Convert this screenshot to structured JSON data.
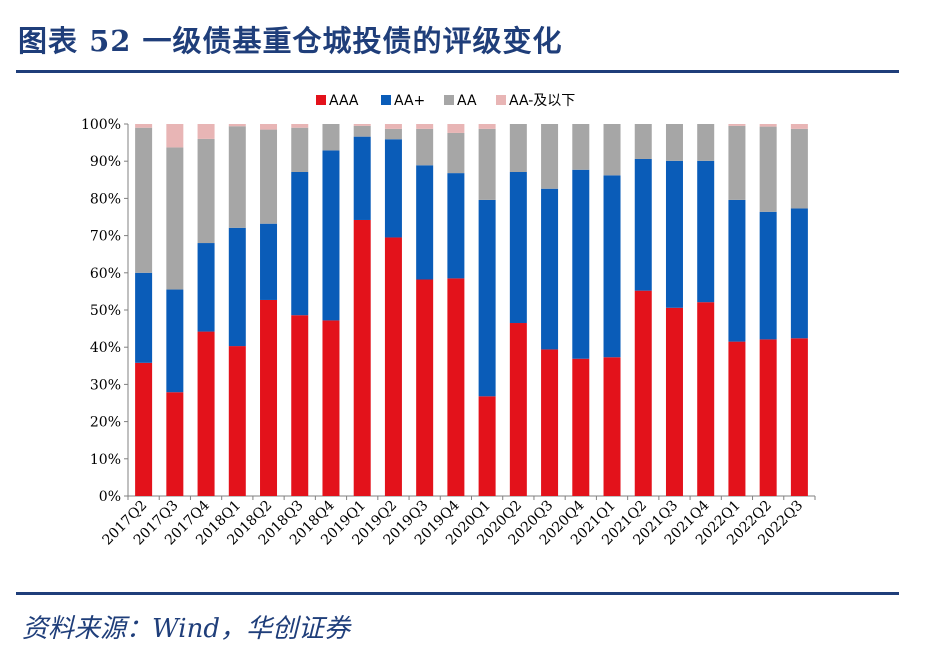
{
  "title": "图表 52  一级债基重仓城投债的评级变化",
  "source": "资料来源：Wind，华创证券",
  "colors": {
    "AAA": "#e3121b",
    "AA+": "#0a5cb8",
    "AA": "#a6a6a6",
    "AA-及以下": "#e8b5b5",
    "axis": "#808080",
    "text": "#000000"
  },
  "chart_data": {
    "type": "bar",
    "stacked": true,
    "title": "",
    "xlabel": "",
    "ylabel": "",
    "ylim": [
      0,
      100
    ],
    "y_ticks": [
      "0%",
      "10%",
      "20%",
      "30%",
      "40%",
      "50%",
      "60%",
      "70%",
      "80%",
      "90%",
      "100%"
    ],
    "legend_position": "top",
    "categories": [
      "2017Q2",
      "2017Q3",
      "2017Q4",
      "2018Q1",
      "2018Q2",
      "2018Q3",
      "2018Q4",
      "2019Q1",
      "2019Q2",
      "2019Q3",
      "2019Q4",
      "2020Q1",
      "2020Q2",
      "2020Q3",
      "2020Q4",
      "2021Q1",
      "2021Q2",
      "2021Q3",
      "2021Q4",
      "2022Q1",
      "2022Q2",
      "2022Q3"
    ],
    "series": [
      {
        "name": "AAA",
        "values": [
          35.8,
          27.9,
          44.2,
          40.3,
          52.7,
          48.6,
          47.2,
          74.2,
          69.5,
          58.2,
          58.5,
          26.8,
          46.5,
          39.4,
          36.9,
          37.3,
          55.2,
          50.6,
          52.1,
          41.5,
          42.1,
          42.4
        ]
      },
      {
        "name": "AA+",
        "values": [
          24.2,
          27.6,
          23.8,
          31.8,
          20.5,
          38.5,
          45.7,
          22.4,
          26.4,
          30.7,
          28.3,
          52.8,
          40.6,
          43.2,
          50.8,
          48.9,
          35.4,
          39.5,
          38.0,
          38.1,
          34.3,
          34.9
        ]
      },
      {
        "name": "AA",
        "values": [
          39.0,
          38.2,
          28.0,
          27.3,
          25.3,
          11.9,
          7.1,
          2.9,
          2.8,
          9.8,
          10.8,
          19.1,
          12.9,
          17.4,
          12.3,
          13.8,
          9.4,
          9.9,
          9.9,
          19.9,
          22.9,
          21.4
        ]
      },
      {
        "name": "AA-及以下",
        "values": [
          1.0,
          6.3,
          4.0,
          0.6,
          1.5,
          1.0,
          0.0,
          0.5,
          1.3,
          1.3,
          2.4,
          1.3,
          0.0,
          0.0,
          0.0,
          0.0,
          0.0,
          0.0,
          0.0,
          0.5,
          0.7,
          1.3
        ]
      }
    ]
  }
}
